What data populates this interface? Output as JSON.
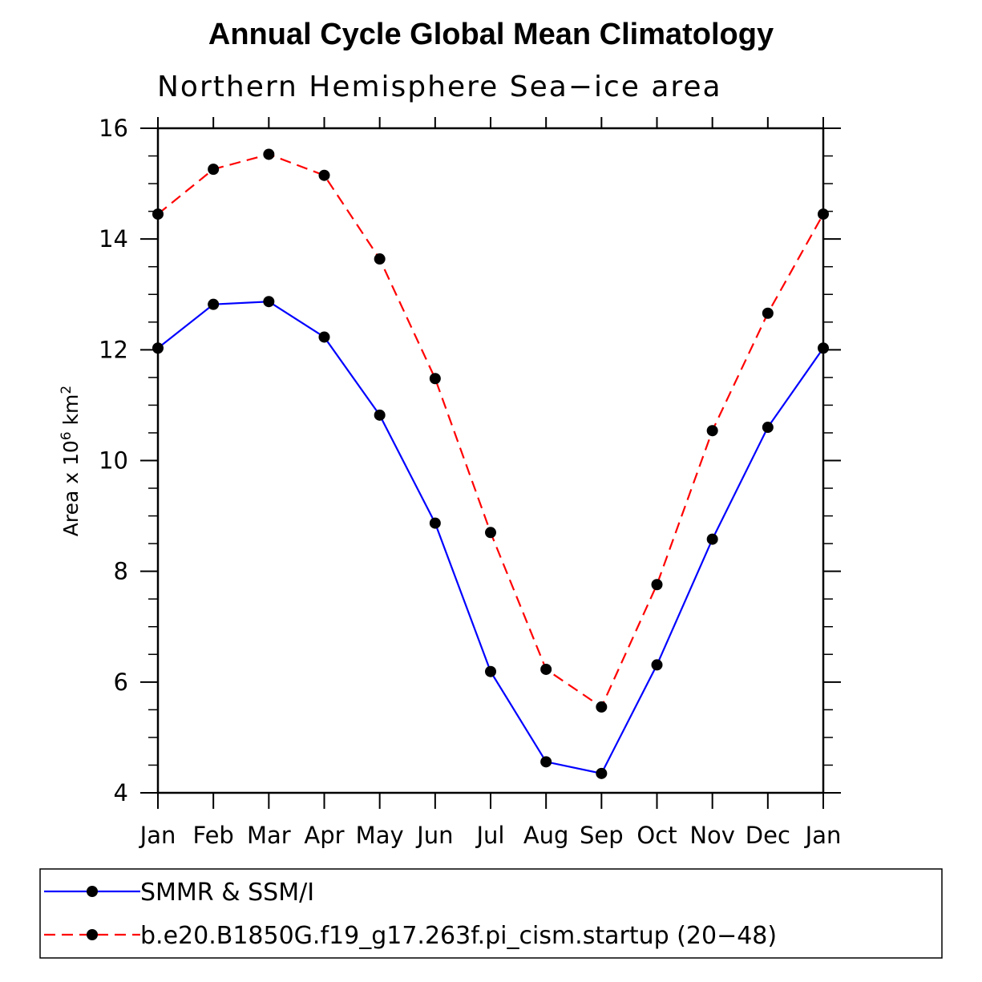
{
  "title": "Annual Cycle Global Mean Climatology",
  "chart_data": {
    "type": "line",
    "subtitle": "Northern Hemisphere Sea−ice area",
    "ylabel": "Area x 10",
    "ylabel_exp1": "6",
    "ylabel_unit": " km",
    "ylabel_exp2": "2",
    "categories": [
      "Jan",
      "Feb",
      "Mar",
      "Apr",
      "May",
      "Jun",
      "Jul",
      "Aug",
      "Sep",
      "Oct",
      "Nov",
      "Dec",
      "Jan"
    ],
    "ylim": [
      4,
      16
    ],
    "yticks": [
      4,
      6,
      8,
      10,
      12,
      14,
      16
    ],
    "legend_position": "bottom",
    "series": [
      {
        "name": "SMMR & SSM/I",
        "color": "#0000ff",
        "dashed": false,
        "values": [
          12.03,
          12.82,
          12.87,
          12.23,
          10.82,
          8.87,
          6.19,
          4.56,
          4.35,
          6.31,
          8.58,
          10.6,
          12.03
        ]
      },
      {
        "name": "b.e20.B1850G.f19_g17.263f.pi_cism.startup (20−48)",
        "color": "#ff0000",
        "dashed": true,
        "values": [
          14.45,
          15.26,
          15.53,
          15.15,
          13.64,
          11.48,
          8.7,
          6.23,
          5.55,
          7.76,
          10.54,
          12.66,
          14.45
        ]
      }
    ]
  }
}
